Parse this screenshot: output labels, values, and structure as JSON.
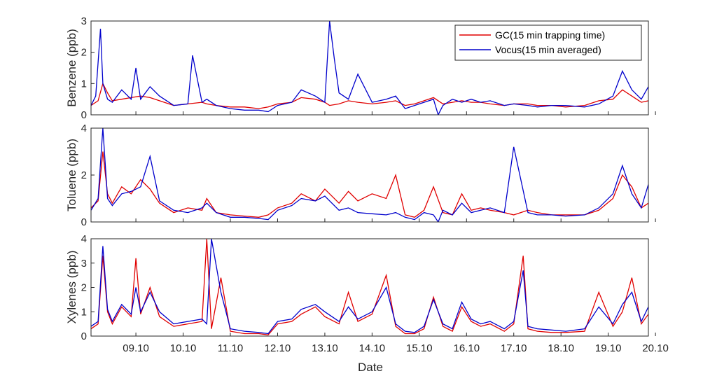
{
  "chart_data": {
    "type": "line",
    "xlabel": "Date",
    "x_ticks": [
      "09.10",
      "10.10",
      "11.10",
      "12.10",
      "13.10",
      "14.10",
      "15.10",
      "16.10",
      "17.10",
      "18.10",
      "19.10",
      "20.10"
    ],
    "xlim": [
      8.55,
      20.35
    ],
    "legend": {
      "placement": "top-right",
      "entries": [
        "GC(15 min trapping time)",
        "Vocus(15 min averaged)"
      ]
    },
    "series_colors": {
      "gc": "#e00000",
      "vocus": "#0000cc"
    },
    "grid": false,
    "panels": [
      {
        "ylabel": "Benzene (ppb)",
        "ylim": [
          0,
          3
        ],
        "yticks": [
          "0",
          "1",
          "2",
          "3"
        ],
        "series": [
          {
            "name": "GC(15 min trapping time)",
            "key": "gc",
            "x": [
              8.55,
              8.7,
              8.8,
              8.9,
              9.0,
              9.2,
              9.4,
              9.6,
              9.8,
              10.0,
              10.3,
              10.6,
              10.9,
              11.0,
              11.2,
              11.5,
              11.8,
              12.1,
              12.3,
              12.5,
              12.8,
              13.0,
              13.3,
              13.5,
              13.6,
              13.8,
              14.0,
              14.2,
              14.5,
              14.8,
              15.0,
              15.2,
              15.4,
              15.6,
              15.8,
              16.0,
              16.2,
              16.4,
              16.6,
              16.8,
              17.0,
              17.3,
              17.5,
              17.8,
              18.0,
              18.3,
              18.6,
              19.0,
              19.3,
              19.6,
              19.8,
              20.0,
              20.2,
              20.35
            ],
            "y": [
              0.3,
              0.45,
              1.0,
              0.7,
              0.45,
              0.5,
              0.55,
              0.6,
              0.55,
              0.45,
              0.3,
              0.35,
              0.4,
              0.35,
              0.3,
              0.25,
              0.25,
              0.2,
              0.25,
              0.35,
              0.4,
              0.55,
              0.5,
              0.4,
              0.3,
              0.35,
              0.45,
              0.4,
              0.35,
              0.4,
              0.45,
              0.3,
              0.35,
              0.45,
              0.55,
              0.35,
              0.4,
              0.45,
              0.4,
              0.4,
              0.35,
              0.3,
              0.35,
              0.35,
              0.3,
              0.3,
              0.25,
              0.3,
              0.45,
              0.5,
              0.8,
              0.6,
              0.4,
              0.45
            ]
          },
          {
            "name": "Vocus(15 min averaged)",
            "key": "vocus",
            "x": [
              8.55,
              8.65,
              8.75,
              8.8,
              8.9,
              9.0,
              9.2,
              9.4,
              9.5,
              9.6,
              9.8,
              10.0,
              10.3,
              10.6,
              10.7,
              10.9,
              11.0,
              11.2,
              11.5,
              11.8,
              12.1,
              12.3,
              12.5,
              12.8,
              13.0,
              13.3,
              13.5,
              13.6,
              13.7,
              13.8,
              14.0,
              14.2,
              14.5,
              14.8,
              15.0,
              15.2,
              15.4,
              15.6,
              15.8,
              15.9,
              16.0,
              16.2,
              16.4,
              16.6,
              16.8,
              17.0,
              17.3,
              17.5,
              17.8,
              18.0,
              18.3,
              18.6,
              19.0,
              19.3,
              19.6,
              19.8,
              20.0,
              20.2,
              20.35
            ],
            "y": [
              0.3,
              0.6,
              2.75,
              1.0,
              0.5,
              0.4,
              0.8,
              0.5,
              1.5,
              0.5,
              0.9,
              0.6,
              0.3,
              0.35,
              1.9,
              0.4,
              0.5,
              0.3,
              0.2,
              0.15,
              0.15,
              0.1,
              0.3,
              0.4,
              0.8,
              0.6,
              0.4,
              3.0,
              1.8,
              0.7,
              0.5,
              1.3,
              0.4,
              0.5,
              0.6,
              0.2,
              0.3,
              0.4,
              0.5,
              0.0,
              0.3,
              0.5,
              0.4,
              0.5,
              0.4,
              0.45,
              0.3,
              0.35,
              0.3,
              0.25,
              0.3,
              0.3,
              0.25,
              0.35,
              0.6,
              1.4,
              0.8,
              0.5,
              0.9
            ]
          }
        ]
      },
      {
        "ylabel": "Toluene (ppb)",
        "ylim": [
          0,
          4
        ],
        "yticks": [
          "0",
          "2",
          "4"
        ],
        "series": [
          {
            "name": "GC(15 min trapping time)",
            "key": "gc",
            "x": [
              8.55,
              8.7,
              8.8,
              8.9,
              9.0,
              9.2,
              9.4,
              9.6,
              9.8,
              10.0,
              10.3,
              10.6,
              10.9,
              11.0,
              11.2,
              11.5,
              11.8,
              12.1,
              12.3,
              12.5,
              12.8,
              13.0,
              13.3,
              13.5,
              13.8,
              14.0,
              14.2,
              14.5,
              14.8,
              15.0,
              15.2,
              15.4,
              15.6,
              15.8,
              16.0,
              16.2,
              16.4,
              16.6,
              16.8,
              17.0,
              17.3,
              17.5,
              17.8,
              18.0,
              18.3,
              18.6,
              19.0,
              19.3,
              19.6,
              19.8,
              20.0,
              20.2,
              20.35
            ],
            "y": [
              0.6,
              0.9,
              3.0,
              1.2,
              0.8,
              1.5,
              1.2,
              1.8,
              1.4,
              0.8,
              0.4,
              0.6,
              0.5,
              1.0,
              0.4,
              0.3,
              0.25,
              0.2,
              0.3,
              0.6,
              0.8,
              1.2,
              0.9,
              1.4,
              0.8,
              1.3,
              0.9,
              1.2,
              1.0,
              2.0,
              0.3,
              0.2,
              0.5,
              1.5,
              0.4,
              0.3,
              1.2,
              0.5,
              0.6,
              0.5,
              0.4,
              0.3,
              0.5,
              0.4,
              0.3,
              0.3,
              0.3,
              0.5,
              1.0,
              2.0,
              1.5,
              0.6,
              0.8
            ]
          },
          {
            "name": "Vocus(15 min averaged)",
            "key": "vocus",
            "x": [
              8.55,
              8.7,
              8.8,
              8.9,
              9.0,
              9.2,
              9.4,
              9.6,
              9.8,
              10.0,
              10.3,
              10.6,
              10.9,
              11.0,
              11.2,
              11.5,
              11.8,
              12.1,
              12.3,
              12.5,
              12.8,
              13.0,
              13.3,
              13.5,
              13.8,
              14.0,
              14.2,
              14.5,
              14.8,
              15.0,
              15.2,
              15.4,
              15.6,
              15.8,
              15.9,
              16.0,
              16.2,
              16.4,
              16.6,
              16.8,
              17.0,
              17.3,
              17.5,
              17.8,
              18.0,
              18.3,
              18.6,
              19.0,
              19.3,
              19.6,
              19.8,
              20.0,
              20.2,
              20.35
            ],
            "y": [
              0.5,
              1.0,
              4.0,
              1.0,
              0.7,
              1.2,
              1.3,
              1.5,
              2.8,
              0.9,
              0.5,
              0.4,
              0.6,
              0.8,
              0.4,
              0.2,
              0.2,
              0.15,
              0.1,
              0.5,
              0.7,
              1.0,
              0.9,
              1.1,
              0.5,
              0.6,
              0.4,
              0.35,
              0.3,
              0.4,
              0.2,
              0.1,
              0.4,
              0.3,
              0.0,
              0.5,
              0.3,
              0.8,
              0.4,
              0.5,
              0.6,
              0.4,
              3.2,
              0.4,
              0.3,
              0.3,
              0.25,
              0.3,
              0.6,
              1.2,
              2.4,
              1.2,
              0.6,
              1.6
            ]
          }
        ]
      },
      {
        "ylabel": "Xylenes (ppb)",
        "ylim": [
          0,
          4
        ],
        "yticks": [
          "0",
          "1",
          "2",
          "3",
          "4"
        ],
        "series": [
          {
            "name": "GC(15 min trapping time)",
            "key": "gc",
            "x": [
              8.55,
              8.7,
              8.8,
              8.9,
              9.0,
              9.2,
              9.4,
              9.5,
              9.6,
              9.8,
              10.0,
              10.3,
              10.6,
              10.9,
              11.0,
              11.1,
              11.3,
              11.5,
              11.8,
              12.1,
              12.3,
              12.5,
              12.8,
              13.0,
              13.3,
              13.5,
              13.8,
              14.0,
              14.2,
              14.5,
              14.8,
              15.0,
              15.2,
              15.4,
              15.6,
              15.8,
              16.0,
              16.2,
              16.4,
              16.6,
              16.8,
              17.0,
              17.3,
              17.5,
              17.7,
              17.8,
              18.0,
              18.3,
              18.6,
              19.0,
              19.3,
              19.6,
              19.8,
              20.0,
              20.2,
              20.35
            ],
            "y": [
              0.3,
              0.5,
              3.3,
              1.0,
              0.5,
              1.2,
              0.8,
              3.2,
              0.9,
              2.0,
              0.8,
              0.4,
              0.5,
              0.6,
              4.0,
              0.3,
              2.4,
              0.2,
              0.1,
              0.1,
              0.05,
              0.5,
              0.6,
              0.9,
              1.2,
              0.8,
              0.5,
              1.8,
              0.6,
              0.9,
              2.5,
              0.4,
              0.1,
              0.1,
              0.3,
              1.6,
              0.4,
              0.2,
              1.2,
              0.6,
              0.4,
              0.5,
              0.2,
              0.5,
              3.3,
              0.3,
              0.2,
              0.15,
              0.15,
              0.2,
              1.8,
              0.4,
              1.0,
              2.4,
              0.5,
              0.9
            ]
          },
          {
            "name": "Vocus(15 min averaged)",
            "key": "vocus",
            "x": [
              8.55,
              8.7,
              8.8,
              8.9,
              9.0,
              9.2,
              9.4,
              9.5,
              9.6,
              9.8,
              10.0,
              10.3,
              10.6,
              10.9,
              11.0,
              11.1,
              11.3,
              11.5,
              11.8,
              12.1,
              12.3,
              12.5,
              12.8,
              13.0,
              13.3,
              13.5,
              13.8,
              14.0,
              14.2,
              14.5,
              14.8,
              15.0,
              15.2,
              15.4,
              15.6,
              15.8,
              16.0,
              16.2,
              16.4,
              16.6,
              16.8,
              17.0,
              17.3,
              17.5,
              17.7,
              17.8,
              18.0,
              18.3,
              18.6,
              19.0,
              19.3,
              19.6,
              19.8,
              20.0,
              20.2,
              20.35
            ],
            "y": [
              0.4,
              0.6,
              3.7,
              1.1,
              0.6,
              1.3,
              0.9,
              2.0,
              1.0,
              1.8,
              1.0,
              0.5,
              0.6,
              0.7,
              0.5,
              4.0,
              1.8,
              0.3,
              0.2,
              0.15,
              0.1,
              0.6,
              0.7,
              1.1,
              1.3,
              1.0,
              0.6,
              1.2,
              0.7,
              1.0,
              2.0,
              0.5,
              0.2,
              0.15,
              0.4,
              1.5,
              0.5,
              0.3,
              1.4,
              0.7,
              0.5,
              0.6,
              0.3,
              0.6,
              2.7,
              0.4,
              0.3,
              0.25,
              0.2,
              0.3,
              1.2,
              0.5,
              1.3,
              1.8,
              0.6,
              1.2
            ]
          }
        ]
      }
    ]
  }
}
